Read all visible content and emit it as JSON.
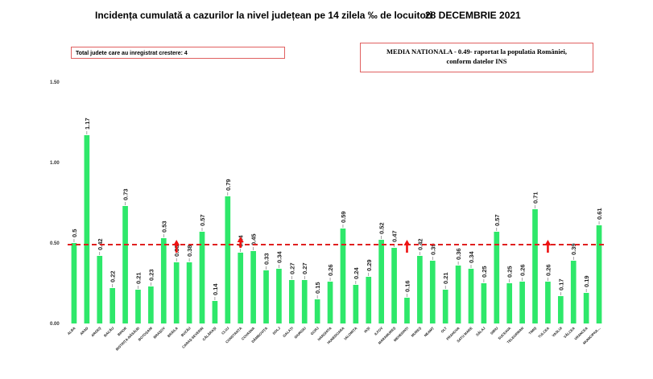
{
  "header": {
    "title": "Incidența cumulată a cazurilor la nivel județean pe 14 zilela ‰ de locuitori",
    "date": "28 DECEMBRIE 2021"
  },
  "info_left": "Total judete care au inregistrat crestere: 4",
  "info_right": {
    "line1": "MEDIA NATIONALA - 0.49- raportat la populatia României,",
    "line2": "conform datelor INS"
  },
  "colors": {
    "bar": "#2ee86a",
    "average_line": "#e02020",
    "arrow": "#ee1111",
    "box_border": "#e06060"
  },
  "chart_data": {
    "type": "bar",
    "title": "Incidența cumulată a cazurilor la nivel județean pe 14 zilela ‰ de locuitori",
    "categories": [
      "ALBA",
      "ARAD",
      "ARGEȘ",
      "BACĂU",
      "BIHOR",
      "BISTRIȚA-NĂSĂUD",
      "BOTOȘANI",
      "BRAȘOV",
      "BRĂILA",
      "BUZĂU",
      "CARAȘ-SEVERIN",
      "CĂLĂRAȘI",
      "CLUJ",
      "CONSTANȚA",
      "COVASNA",
      "DÂMBOVIȚA",
      "DOLJ",
      "GALAȚI",
      "GIURGIU",
      "GORJ",
      "HARGHITA",
      "HUNEDOARA",
      "IALOMIȚA",
      "IAȘI",
      "ILFOV",
      "MARAMUREȘ",
      "MEHEDINȚI",
      "MUREȘ",
      "NEAMȚ",
      "OLT",
      "PRAHOVA",
      "SATU MARE",
      "SĂLAJ",
      "SIBIU",
      "SUCEAVA",
      "TELEORMAN",
      "TIMIȘ",
      "TULCEA",
      "VASLUI",
      "VÂLCEA",
      "VRANCEA",
      "MUNICIPIUL..."
    ],
    "values": [
      0.5,
      1.17,
      0.42,
      0.22,
      0.73,
      0.21,
      0.23,
      0.53,
      0.38,
      0.38,
      0.57,
      0.14,
      0.79,
      0.44,
      0.45,
      0.33,
      0.34,
      0.27,
      0.27,
      0.15,
      0.26,
      0.59,
      0.24,
      0.29,
      0.52,
      0.47,
      0.16,
      0.42,
      0.39,
      0.21,
      0.36,
      0.34,
      0.25,
      0.57,
      0.25,
      0.26,
      0.71,
      0.26,
      0.17,
      0.39,
      0.19,
      0.61
    ],
    "labels": [
      "0.5",
      "1.17",
      "0.42",
      "0.22",
      "0.73",
      "0.21",
      "0.23",
      "0.53",
      "0.38",
      "0.38",
      "0.57",
      "0.14",
      "0.79",
      "0.44",
      "0.45",
      "0.33",
      "0.34",
      "0.27",
      "0.27",
      "0.15",
      "0.26",
      "0.59",
      "0.24",
      "0.29",
      "0.52",
      "0.47",
      "0.16",
      "0.42",
      "0.39",
      "0.21",
      "0.36",
      "0.34",
      "0.25",
      "0.57",
      "0.25",
      "0.26",
      "0.71",
      "0.26",
      "0.17",
      "0.39",
      "0.19",
      "0.61"
    ],
    "yticks": [
      "0.00",
      "0.50",
      "1.00",
      "1.50"
    ],
    "ylim": [
      0,
      1.5
    ],
    "average": 0.49,
    "increase_markers": [
      "BRĂILA",
      "CONSTANȚA",
      "MEHEDINȚI",
      "TULCEA"
    ],
    "grid": false
  }
}
